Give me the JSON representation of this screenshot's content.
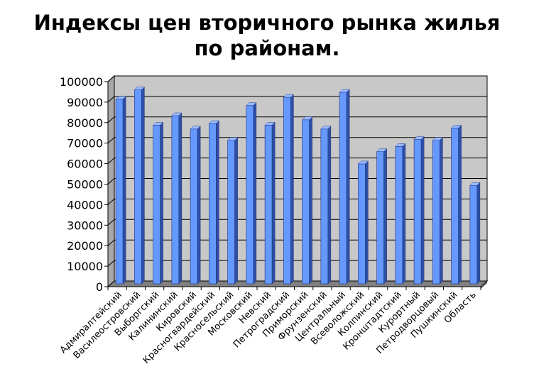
{
  "title_line1": "Индексы цен вторичного рынка жилья",
  "title_line2": "по районам.",
  "chart_data": {
    "type": "bar",
    "title": "Индексы цен вторичного рынка жилья по районам.",
    "xlabel": "",
    "ylabel": "",
    "ylim": [
      0,
      100000
    ],
    "yticks": [
      0,
      10000,
      20000,
      30000,
      40000,
      50000,
      60000,
      70000,
      80000,
      90000,
      100000
    ],
    "grid": true,
    "legend": "none",
    "bar_color": "#6699ff",
    "categories": [
      "Адмиралтейский",
      "Василеостровский",
      "Выборгский",
      "Калининский",
      "Кировский",
      "Красногвардейский",
      "Красносельский",
      "Московский",
      "Невский",
      "Петроградский",
      "Приморский",
      "Фрунзенский",
      "Центральный",
      "Всеволожский",
      "Колпинский",
      "Кронштадтский",
      "Курортный",
      "Петродворцовый",
      "Пушкинский",
      "Область"
    ],
    "values": [
      90000,
      94600,
      77400,
      82000,
      75500,
      78200,
      70000,
      87000,
      77400,
      91000,
      80000,
      75500,
      93400,
      58500,
      64500,
      67000,
      70400,
      70000,
      76000,
      48000
    ]
  }
}
